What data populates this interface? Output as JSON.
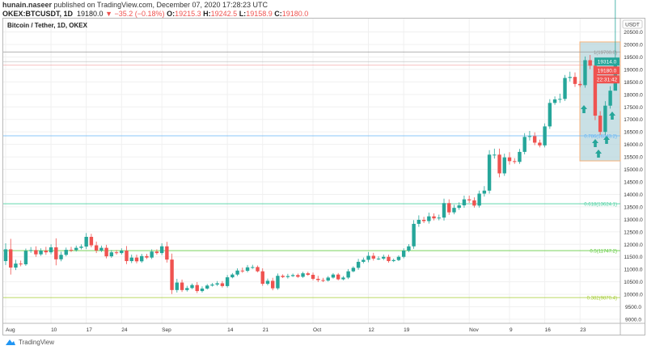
{
  "header": {
    "author": "hunain.naseer",
    "published_text": "published on TradingView.com, December 07, 2020 17:28:23 UTC",
    "symbol": "OKEX:BTCUSDT, 1D",
    "last": "19180.0",
    "change": "▼ −35.2 (−0.18%)",
    "o_label": "O:",
    "o": "19215.3",
    "h_label": "H:",
    "h": "19242.5",
    "l_label": "L:",
    "l": "19158.9",
    "c_label": "C:",
    "c": "19180.0"
  },
  "legend": "Bitcoin / Tether, 1D, OKEX",
  "currency": "USDT",
  "price_ticks": [
    "20500.0",
    "20000.0",
    "19500.0",
    "19000.0",
    "18500.0",
    "18000.0",
    "17500.0",
    "17000.0",
    "16500.0",
    "16000.0",
    "15500.0",
    "15000.0",
    "14500.0",
    "14000.0",
    "13500.0",
    "13000.0",
    "12500.0",
    "12000.0",
    "11500.0",
    "11000.0",
    "10500.0",
    "10000.0",
    "9500.0",
    "9000.0"
  ],
  "time_ticks": [
    {
      "label": "Aug",
      "day": 0
    },
    {
      "label": "10",
      "day": 9
    },
    {
      "label": "17",
      "day": 16
    },
    {
      "label": "24",
      "day": 23
    },
    {
      "label": "Sep",
      "day": 31
    },
    {
      "label": "14",
      "day": 44
    },
    {
      "label": "21",
      "day": 51
    },
    {
      "label": "Oct",
      "day": 61
    },
    {
      "label": "12",
      "day": 72
    },
    {
      "label": "19",
      "day": 79
    },
    {
      "label": "Nov",
      "day": 92
    },
    {
      "label": "9",
      "day": 100
    },
    {
      "label": "16",
      "day": 107
    },
    {
      "label": "23",
      "day": 114
    }
  ],
  "price_labels": [
    {
      "text": "19314.0",
      "value": 19314,
      "color": "#26a69a"
    },
    {
      "text": "19180.0",
      "value": 19180,
      "color": "#ef5350"
    },
    {
      "text": "22:31:42",
      "value": 18860,
      "color": "#ef5350"
    }
  ],
  "fib_levels": [
    {
      "label": "1(19700.0)",
      "value": 19700,
      "color": "#999999"
    },
    {
      "label": "0.786(16343.2)",
      "value": 16343.2,
      "color": "#64b5f6"
    },
    {
      "label": "0.618(13624.1)",
      "value": 13624.1,
      "color": "#4dd0a1"
    },
    {
      "label": "0.5(11747.2)",
      "value": 11747.2,
      "color": "#66cc44"
    },
    {
      "label": "0.382(9870.4)",
      "value": 9870.4,
      "color": "#a5cc33"
    }
  ],
  "colors": {
    "up": "#26a69a",
    "down": "#ef5350",
    "box_fill": "#b7d6dc",
    "box_border": "#f7b27a"
  },
  "chart_data": {
    "type": "candlestick",
    "ylim": [
      9000,
      20700
    ],
    "start": "Aug 1",
    "interval": "1D",
    "close": [
      11800,
      11070,
      11230,
      11200,
      11740,
      11770,
      11600,
      11750,
      11680,
      11880,
      11400,
      11580,
      11780,
      11770,
      11860,
      11910,
      12300,
      11960,
      11750,
      11860,
      11520,
      11680,
      11650,
      11750,
      11330,
      11470,
      11320,
      11530,
      11470,
      11710,
      11650,
      11920,
      11390,
      10170,
      10470,
      10170,
      10250,
      10370,
      10130,
      10230,
      10350,
      10390,
      10440,
      10330,
      10680,
      10790,
      10950,
      10940,
      11080,
      11090,
      10920,
      10420,
      10540,
      10240,
      10740,
      10690,
      10730,
      10770,
      10700,
      10840,
      10780,
      10620,
      10570,
      10550,
      10670,
      10790,
      10600,
      10670,
      10920,
      11060,
      11300,
      11380,
      11540,
      11430,
      11430,
      11500,
      11330,
      11370,
      11500,
      11750,
      11920,
      12820,
      12980,
      12930,
      13120,
      13040,
      13070,
      13650,
      13280,
      13460,
      13560,
      13800,
      13760,
      13550,
      14030,
      14150,
      15590,
      15590,
      14840,
      15480,
      15330,
      15300,
      15700,
      16300,
      16330,
      16070,
      15960,
      16720,
      17660,
      17800,
      17820,
      18660,
      18700,
      18420,
      18370,
      19370,
      19150,
      17150,
      16500,
      17550,
      18150,
      19180
    ],
    "open_first": 11330,
    "wick": [
      400,
      700,
      250,
      200,
      150,
      200,
      250,
      150,
      250,
      200,
      600,
      200,
      150,
      200,
      150,
      150,
      250,
      200,
      250,
      150,
      200,
      150,
      150,
      150,
      300,
      200,
      200,
      150,
      150,
      150,
      150,
      200,
      300,
      400,
      250,
      200,
      150,
      100,
      200,
      150,
      100,
      100,
      150,
      150,
      150,
      100,
      150,
      200,
      150,
      150,
      100,
      200,
      150,
      200,
      150,
      100,
      150,
      100,
      100,
      100,
      100,
      150,
      200,
      150,
      100,
      100,
      100,
      100,
      150,
      100,
      200,
      150,
      250,
      200,
      150,
      150,
      150,
      100,
      100,
      150,
      150,
      250,
      300,
      200,
      250,
      200,
      200,
      300,
      250,
      200,
      200,
      250,
      250,
      200,
      200,
      300,
      300,
      400,
      400,
      250,
      350,
      200,
      200,
      250,
      350,
      250,
      200,
      200,
      250,
      200,
      350,
      200,
      350,
      300,
      200,
      250,
      350,
      450,
      300,
      300,
      300
    ],
    "high_last": 19314
  }
}
